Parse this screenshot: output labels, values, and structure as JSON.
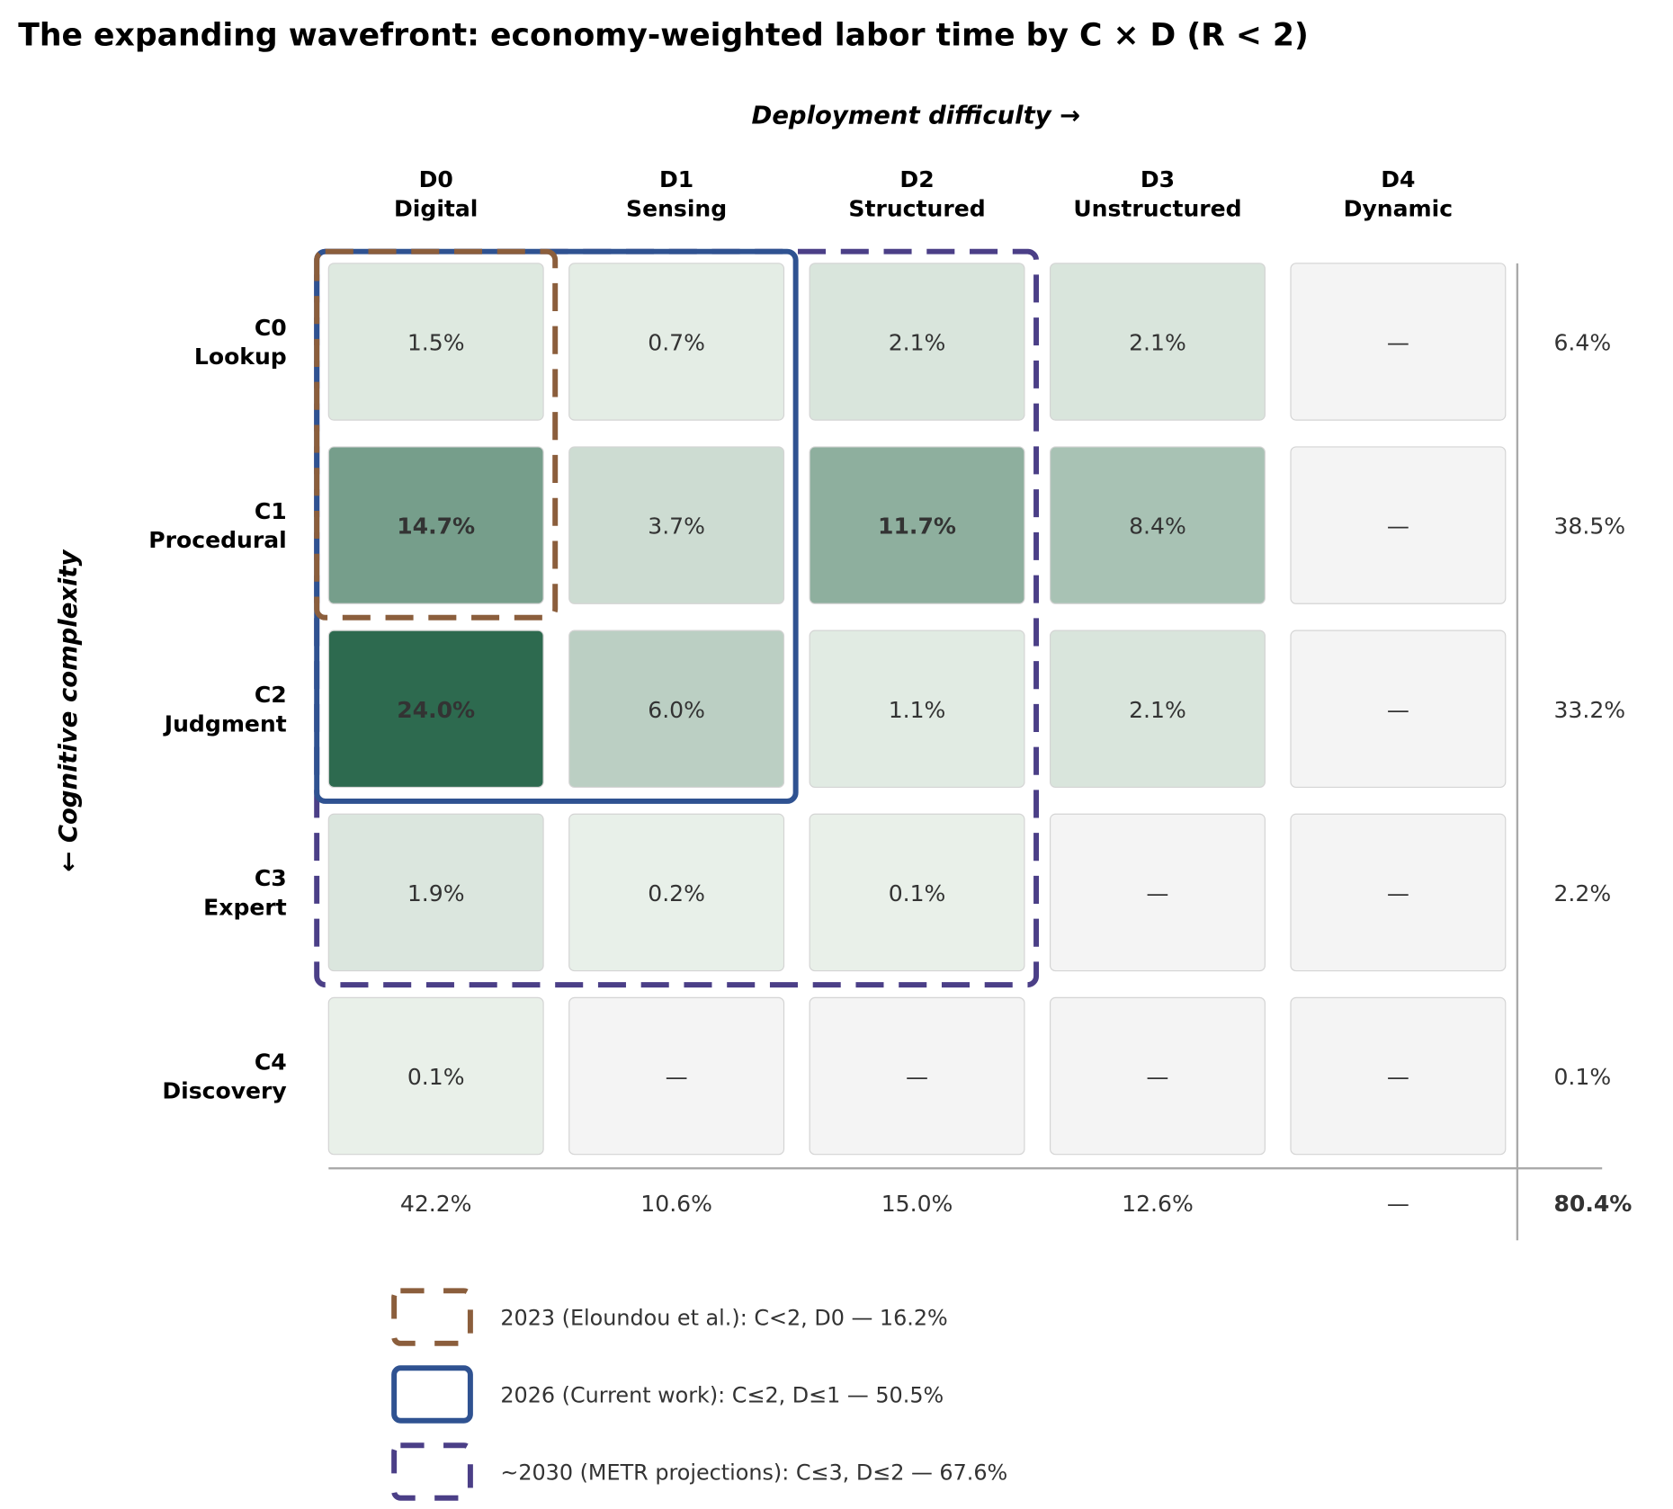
{
  "chart_data": {
    "type": "heatmap",
    "title": "The expanding wavefront: economy-weighted labor time by C × D (R < 2)",
    "xlabel": "Deployment difficulty →",
    "ylabel": "← Cognitive complexity",
    "columns": [
      {
        "code": "D0",
        "name": "Digital"
      },
      {
        "code": "D1",
        "name": "Sensing"
      },
      {
        "code": "D2",
        "name": "Structured"
      },
      {
        "code": "D3",
        "name": "Unstructured"
      },
      {
        "code": "D4",
        "name": "Dynamic"
      }
    ],
    "rows": [
      {
        "code": "C0",
        "name": "Lookup"
      },
      {
        "code": "C1",
        "name": "Procedural"
      },
      {
        "code": "C2",
        "name": "Judgment"
      },
      {
        "code": "C3",
        "name": "Expert"
      },
      {
        "code": "C4",
        "name": "Discovery"
      }
    ],
    "values": [
      [
        1.5,
        0.7,
        2.1,
        2.1,
        null
      ],
      [
        14.7,
        3.7,
        11.7,
        8.4,
        null
      ],
      [
        24.0,
        6.0,
        1.1,
        2.1,
        null
      ],
      [
        1.9,
        0.2,
        0.1,
        null,
        null
      ],
      [
        0.1,
        null,
        null,
        null,
        null
      ]
    ],
    "empty_label": "—",
    "unit": "%",
    "row_totals": [
      "6.4%",
      "38.5%",
      "33.2%",
      "2.2%",
      "0.1%"
    ],
    "col_totals": [
      "42.2%",
      "10.6%",
      "15.0%",
      "12.6%",
      "—"
    ],
    "grand_total": "80.4%",
    "colors": {
      "low": "#eaf1ea",
      "high": "#2d6a4f",
      "empty": "#f4f4f4"
    },
    "regions": [
      {
        "label": "2023 (Eloundou et al.): C<2, D0 — 16.2%",
        "max_row": 1,
        "max_col": 0,
        "color": "#8b5e3c",
        "style": "dashed"
      },
      {
        "label": "2026 (Current work): C≤2, D≤1 — 50.5%",
        "max_row": 2,
        "max_col": 1,
        "color": "#2f5291",
        "style": "solid"
      },
      {
        "label": "~2030 (METR projections): C≤3, D≤2 — 67.6%",
        "max_row": 3,
        "max_col": 2,
        "color": "#4b3f87",
        "style": "dashed"
      }
    ]
  }
}
